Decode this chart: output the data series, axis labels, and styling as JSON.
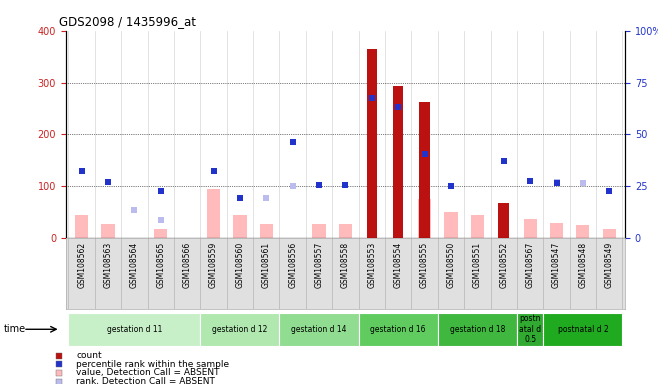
{
  "title": "GDS2098 / 1435996_at",
  "samples": [
    "GSM108562",
    "GSM108563",
    "GSM108564",
    "GSM108565",
    "GSM108566",
    "GSM108559",
    "GSM108560",
    "GSM108561",
    "GSM108556",
    "GSM108557",
    "GSM108558",
    "GSM108553",
    "GSM108554",
    "GSM108555",
    "GSM108550",
    "GSM108551",
    "GSM108552",
    "GSM108567",
    "GSM108547",
    "GSM108548",
    "GSM108549"
  ],
  "count_values": [
    0,
    0,
    0,
    0,
    0,
    0,
    0,
    0,
    0,
    0,
    0,
    365,
    293,
    263,
    0,
    0,
    68,
    0,
    0,
    0,
    0
  ],
  "percentile_rank": [
    130,
    108,
    null,
    90,
    null,
    130,
    77,
    null,
    185,
    102,
    103,
    270,
    252,
    163,
    100,
    null,
    148,
    110,
    107,
    null,
    90
  ],
  "value_absent": [
    45,
    28,
    null,
    18,
    null,
    95,
    45,
    28,
    null,
    27,
    28,
    null,
    null,
    75,
    50,
    45,
    null,
    37,
    30,
    25,
    18
  ],
  "rank_absent": [
    130,
    null,
    55,
    35,
    null,
    null,
    78,
    77,
    100,
    null,
    null,
    null,
    null,
    null,
    null,
    null,
    null,
    null,
    108,
    107,
    null
  ],
  "groups": [
    {
      "label": "gestation d 11",
      "start": 0,
      "end": 5,
      "color": "#c8f0c8"
    },
    {
      "label": "gestation d 12",
      "start": 5,
      "end": 8,
      "color": "#b0e8b0"
    },
    {
      "label": "gestation d 14",
      "start": 8,
      "end": 11,
      "color": "#90dc90"
    },
    {
      "label": "gestation d 16",
      "start": 11,
      "end": 14,
      "color": "#60cc60"
    },
    {
      "label": "gestation d 18",
      "start": 14,
      "end": 17,
      "color": "#40b840"
    },
    {
      "label": "postn\natal d\n0.5",
      "start": 17,
      "end": 18,
      "color": "#30aa30"
    },
    {
      "label": "postnatal d 2",
      "start": 18,
      "end": 21,
      "color": "#20aa20"
    }
  ],
  "ylim_left": [
    0,
    400
  ],
  "ylim_right": [
    0,
    100
  ],
  "yticks_left": [
    0,
    100,
    200,
    300,
    400
  ],
  "yticks_right": [
    0,
    25,
    50,
    75,
    100
  ],
  "count_color": "#bb1111",
  "percentile_color": "#2233cc",
  "value_absent_color": "#ffbbbb",
  "rank_absent_color": "#bbbbee",
  "bg_color": "#e0e0e0"
}
